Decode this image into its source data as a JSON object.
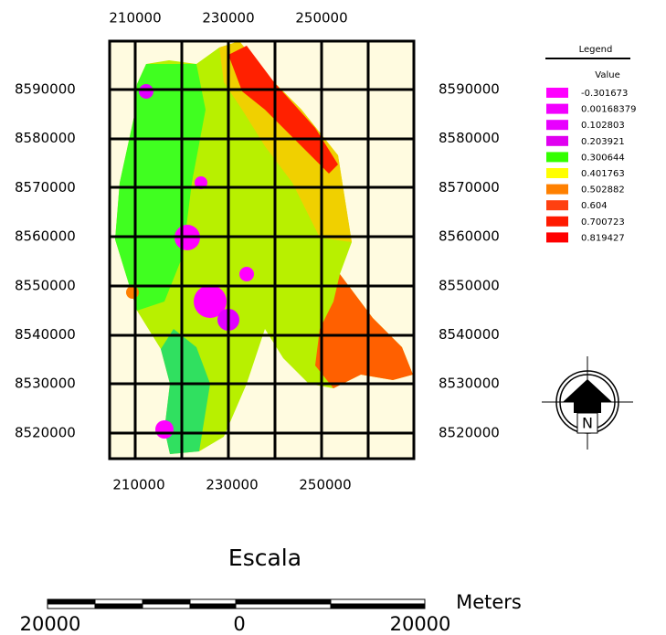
{
  "map": {
    "x_labels": [
      "210000",
      "230000",
      "250000"
    ],
    "y_labels": [
      "8590000",
      "8580000",
      "8570000",
      "8560000",
      "8550000",
      "8540000",
      "8530000",
      "8520000"
    ],
    "legend": {
      "title": "Legend",
      "subtitle": "Value",
      "items": [
        {
          "label": "-0.301673",
          "color": "#ff00ff"
        },
        {
          "label": "0.00168379",
          "color": "#f200ff"
        },
        {
          "label": "0.102803",
          "color": "#e800ff"
        },
        {
          "label": "0.203921",
          "color": "#e000f0"
        },
        {
          "label": "0.300644",
          "color": "#33ff00"
        },
        {
          "label": "0.401763",
          "color": "#ffff00"
        },
        {
          "label": "0.502882",
          "color": "#ff8000"
        },
        {
          "label": "0.604",
          "color": "#ff4010"
        },
        {
          "label": "0.700723",
          "color": "#ff1a00"
        },
        {
          "label": "0.819427",
          "color": "#ff0000"
        }
      ]
    },
    "north": "N",
    "scale": {
      "title": "Escala",
      "labels": [
        "20000",
        "0",
        "20000"
      ],
      "unit": "Meters"
    }
  }
}
